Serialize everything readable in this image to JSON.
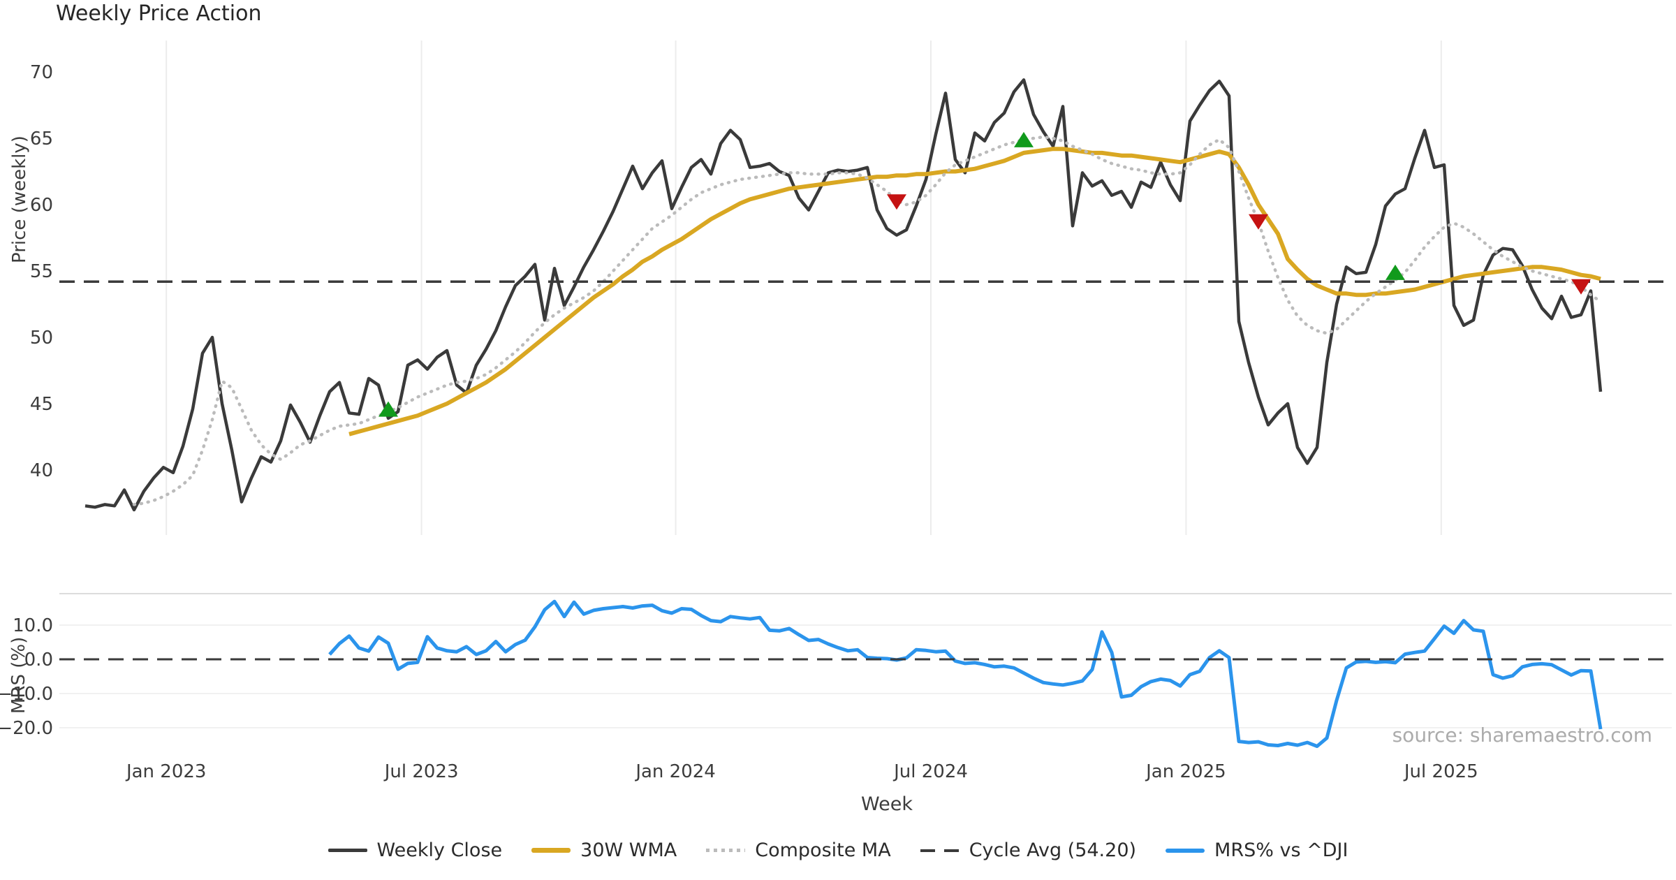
{
  "chart_data": {
    "type": "line",
    "title": "Weekly Price Action",
    "xlabel": "Week",
    "x_unit": "week_index",
    "x_start_week": 0,
    "x_end_week": 155,
    "xticks": [
      {
        "week": 8.3,
        "label": "Jan 2023"
      },
      {
        "week": 34.4,
        "label": "Jul 2023"
      },
      {
        "week": 60.4,
        "label": "Jan 2024"
      },
      {
        "week": 86.5,
        "label": "Jul 2024"
      },
      {
        "week": 112.6,
        "label": "Jan 2025"
      },
      {
        "week": 138.7,
        "label": "Jul 2025"
      }
    ],
    "panels": [
      {
        "id": "price",
        "ylabel": "Price (weekly)",
        "ylim": [
          36.2,
          71.5
        ],
        "yticks": [
          {
            "v": 40,
            "label": "40"
          },
          {
            "v": 45,
            "label": "45"
          },
          {
            "v": 50,
            "label": "50"
          },
          {
            "v": 55,
            "label": "55"
          },
          {
            "v": 60,
            "label": "60"
          },
          {
            "v": 65,
            "label": "65"
          },
          {
            "v": 70,
            "label": "70"
          }
        ],
        "grid": "vertical"
      },
      {
        "id": "mrs",
        "ylabel": "MRS (%)",
        "ylim": [
          -27.8,
          19.2
        ],
        "yticks": [
          {
            "v": 10,
            "label": "10.0"
          },
          {
            "v": 0,
            "label": "0.0"
          },
          {
            "v": -10,
            "label": "−10.0"
          },
          {
            "v": -20,
            "label": "−20.0"
          }
        ],
        "grid": "horizontal"
      }
    ],
    "series": [
      {
        "name": "Weekly Close",
        "panel": "price",
        "color": "#3a3a3a",
        "width": 4.5,
        "dash": "solid",
        "values": [
          37.3,
          37.2,
          37.4,
          37.3,
          38.5,
          37.0,
          38.4,
          39.4,
          40.2,
          39.8,
          41.8,
          44.6,
          48.8,
          50.0,
          45.0,
          41.5,
          37.6,
          39.4,
          41.0,
          40.6,
          42.2,
          44.9,
          43.6,
          42.1,
          44.1,
          45.9,
          46.6,
          44.3,
          44.2,
          46.9,
          46.4,
          43.9,
          44.4,
          47.9,
          48.3,
          47.6,
          48.5,
          49.0,
          46.4,
          45.8,
          47.9,
          49.1,
          50.5,
          52.3,
          53.9,
          54.6,
          55.5,
          51.3,
          55.2,
          52.4,
          53.8,
          55.3,
          56.6,
          58.0,
          59.5,
          61.2,
          62.9,
          61.2,
          62.4,
          63.3,
          59.7,
          61.3,
          62.8,
          63.4,
          62.3,
          64.6,
          65.6,
          64.9,
          62.8,
          62.9,
          63.1,
          62.5,
          62.2,
          60.5,
          59.6,
          61.0,
          62.4,
          62.6,
          62.5,
          62.6,
          62.8,
          59.6,
          58.2,
          57.7,
          58.1,
          59.9,
          61.9,
          65.3,
          68.4,
          63.4,
          62.4,
          65.4,
          64.8,
          66.2,
          66.9,
          68.5,
          69.4,
          66.8,
          65.5,
          64.4,
          67.4,
          58.4,
          62.4,
          61.4,
          61.8,
          60.7,
          61.0,
          59.8,
          61.7,
          61.3,
          63.2,
          61.5,
          60.3,
          66.3,
          67.5,
          68.6,
          69.3,
          68.2,
          51.2,
          48.1,
          45.5,
          43.4,
          44.3,
          45.0,
          41.7,
          40.5,
          41.7,
          48.1,
          52.5,
          55.3,
          54.8,
          54.9,
          57.0,
          59.9,
          60.8,
          61.2,
          63.5,
          65.6,
          62.8,
          63.0,
          52.4,
          50.9,
          51.3,
          54.7,
          56.2,
          56.7,
          56.6,
          55.4,
          53.6,
          52.2,
          51.4,
          53.1,
          51.5,
          51.7,
          53.5,
          45.9
        ]
      },
      {
        "name": "30W WMA",
        "panel": "price",
        "color": "#d9a722",
        "width": 6,
        "dash": "solid",
        "values": [
          null,
          null,
          null,
          null,
          null,
          null,
          null,
          null,
          null,
          null,
          null,
          null,
          null,
          null,
          null,
          null,
          null,
          null,
          null,
          null,
          null,
          null,
          null,
          null,
          null,
          null,
          null,
          42.7,
          42.9,
          43.1,
          43.3,
          43.5,
          43.7,
          43.9,
          44.1,
          44.4,
          44.7,
          45.0,
          45.4,
          45.8,
          46.2,
          46.6,
          47.1,
          47.6,
          48.2,
          48.8,
          49.4,
          50.0,
          50.6,
          51.2,
          51.8,
          52.4,
          53.0,
          53.5,
          54.0,
          54.6,
          55.1,
          55.7,
          56.1,
          56.6,
          57.0,
          57.4,
          57.9,
          58.4,
          58.9,
          59.3,
          59.7,
          60.1,
          60.4,
          60.6,
          60.8,
          61.0,
          61.2,
          61.3,
          61.4,
          61.5,
          61.6,
          61.7,
          61.8,
          61.9,
          62.0,
          62.1,
          62.1,
          62.2,
          62.2,
          62.3,
          62.3,
          62.4,
          62.5,
          62.5,
          62.6,
          62.7,
          62.9,
          63.1,
          63.3,
          63.6,
          63.9,
          64.0,
          64.1,
          64.2,
          64.2,
          64.1,
          64.0,
          63.9,
          63.9,
          63.8,
          63.7,
          63.7,
          63.6,
          63.5,
          63.4,
          63.3,
          63.2,
          63.4,
          63.6,
          63.8,
          64.0,
          63.8,
          62.8,
          61.5,
          60.0,
          58.9,
          57.8,
          55.9,
          55.1,
          54.4,
          53.9,
          53.6,
          53.3,
          53.3,
          53.2,
          53.2,
          53.3,
          53.3,
          53.4,
          53.5,
          53.6,
          53.8,
          54.0,
          54.2,
          54.4,
          54.6,
          54.7,
          54.8,
          54.9,
          55.0,
          55.1,
          55.2,
          55.3,
          55.3,
          55.2,
          55.1,
          54.9,
          54.7,
          54.6,
          54.4
        ]
      },
      {
        "name": "Composite MA",
        "panel": "price",
        "color": "#bbbbbb",
        "width": 4.5,
        "dash": "dotted",
        "values": [
          null,
          null,
          null,
          null,
          null,
          37.4,
          37.5,
          37.7,
          38.0,
          38.4,
          38.9,
          39.6,
          41.5,
          43.8,
          46.7,
          46.2,
          44.6,
          43.0,
          41.9,
          41.2,
          40.8,
          41.3,
          41.9,
          42.2,
          42.6,
          43.0,
          43.3,
          43.4,
          43.5,
          43.8,
          44.1,
          44.4,
          44.7,
          45.1,
          45.5,
          45.8,
          46.1,
          46.4,
          46.6,
          46.7,
          46.9,
          47.2,
          47.7,
          48.3,
          48.9,
          49.6,
          50.4,
          51.1,
          51.7,
          52.2,
          52.6,
          53.0,
          53.5,
          54.2,
          55.0,
          55.8,
          56.6,
          57.4,
          58.2,
          58.7,
          59.2,
          59.8,
          60.4,
          60.9,
          61.2,
          61.5,
          61.7,
          61.9,
          62.0,
          62.1,
          62.2,
          62.3,
          62.4,
          62.4,
          62.3,
          62.3,
          62.3,
          62.4,
          62.4,
          62.3,
          62.0,
          61.5,
          61.0,
          60.3,
          60.0,
          60.2,
          60.7,
          61.5,
          62.4,
          63.0,
          63.3,
          63.6,
          63.9,
          64.2,
          64.5,
          64.7,
          64.9,
          65.0,
          65.1,
          65.0,
          64.8,
          64.4,
          64.1,
          63.8,
          63.4,
          63.1,
          62.9,
          62.7,
          62.6,
          62.4,
          62.3,
          62.3,
          62.4,
          63.0,
          63.8,
          64.5,
          64.9,
          64.3,
          62.5,
          60.5,
          58.7,
          56.5,
          54.5,
          52.8,
          51.6,
          50.9,
          50.5,
          50.3,
          50.6,
          51.3,
          52.0,
          52.7,
          53.3,
          53.8,
          54.3,
          54.9,
          55.8,
          56.8,
          57.6,
          58.3,
          58.6,
          58.3,
          57.8,
          57.2,
          56.6,
          56.1,
          55.7,
          55.3,
          55.0,
          54.8,
          54.6,
          54.4,
          54.2,
          53.8,
          53.2,
          52.7
        ]
      },
      {
        "name": "Cycle Avg (54.20)",
        "panel": "price",
        "color": "#3a3a3a",
        "width": 3.5,
        "dash": "dashed",
        "constant": 54.2
      },
      {
        "name": "MRS% vs ^DJI",
        "panel": "mrs",
        "color": "#2b94ec",
        "width": 5,
        "dash": "solid",
        "values": [
          null,
          null,
          null,
          null,
          null,
          null,
          null,
          null,
          null,
          null,
          null,
          null,
          null,
          null,
          null,
          null,
          null,
          null,
          null,
          null,
          null,
          null,
          null,
          null,
          null,
          1.4,
          4.6,
          6.8,
          3.3,
          2.4,
          6.5,
          4.7,
          -2.9,
          -1.2,
          -0.9,
          6.6,
          3.3,
          2.5,
          2.2,
          3.7,
          1.4,
          2.5,
          5.2,
          2.2,
          4.3,
          5.6,
          9.5,
          14.5,
          16.9,
          12.5,
          16.7,
          13.2,
          14.3,
          14.8,
          15.1,
          15.4,
          15.0,
          15.6,
          15.8,
          14.2,
          13.5,
          14.8,
          14.6,
          12.8,
          11.3,
          11.0,
          12.5,
          12.1,
          11.8,
          12.2,
          8.5,
          8.3,
          9.0,
          7.2,
          5.5,
          5.8,
          4.5,
          3.4,
          2.5,
          2.8,
          0.5,
          0.3,
          0.2,
          -0.2,
          0.4,
          2.8,
          2.6,
          2.2,
          2.4,
          -0.5,
          -1.2,
          -1.0,
          -1.5,
          -2.2,
          -2.0,
          -2.5,
          -4.0,
          -5.5,
          -6.8,
          -7.2,
          -7.5,
          -7.0,
          -6.3,
          -3.0,
          8.0,
          2.0,
          -11.0,
          -10.5,
          -8.0,
          -6.5,
          -5.8,
          -6.2,
          -7.8,
          -4.5,
          -3.5,
          0.5,
          2.5,
          0.5,
          -24.0,
          -24.3,
          -24.1,
          -25.0,
          -25.2,
          -24.6,
          -25.1,
          -24.3,
          -25.4,
          -23.0,
          -12.0,
          -2.5,
          -0.8,
          -0.6,
          -0.9,
          -0.7,
          -1.0,
          1.5,
          2.0,
          2.4,
          6.0,
          9.7,
          7.6,
          11.3,
          8.6,
          8.2,
          -4.5,
          -5.5,
          -4.8,
          -2.2,
          -1.5,
          -1.3,
          -1.6,
          -3.1,
          -4.6,
          -3.3,
          -3.4,
          -20.4
        ]
      },
      {
        "name": "Zero Line",
        "panel": "mrs",
        "color": "#3a3a3a",
        "width": 3,
        "dash": "dashed",
        "constant": 0.0
      }
    ],
    "signals": {
      "buy": {
        "marker": "triangle-up",
        "color": "#119a1c",
        "points": [
          [
            31,
            44.6
          ],
          [
            96,
            64.9
          ],
          [
            134,
            54.9
          ]
        ]
      },
      "sell": {
        "marker": "triangle-down",
        "color": "#c51212",
        "points": [
          [
            83,
            60.2
          ],
          [
            120,
            58.7
          ],
          [
            153,
            53.8
          ]
        ]
      }
    },
    "cycle_avg_value": "54.20",
    "legend": {
      "position": "bottom-center",
      "items": [
        {
          "label": "Weekly Close",
          "color": "#3a3a3a",
          "style": "solid"
        },
        {
          "label": "30W WMA",
          "color": "#d9a722",
          "style": "solid"
        },
        {
          "label": "Composite MA",
          "color": "#bbbbbb",
          "style": "dotted"
        },
        {
          "label": "Cycle Avg (54.20)",
          "color": "#3a3a3a",
          "style": "dashed"
        },
        {
          "label": "MRS% vs ^DJI",
          "color": "#2b94ec",
          "style": "solid"
        }
      ]
    },
    "annotations": {
      "source_note": "source: sharemaestro.com"
    }
  }
}
